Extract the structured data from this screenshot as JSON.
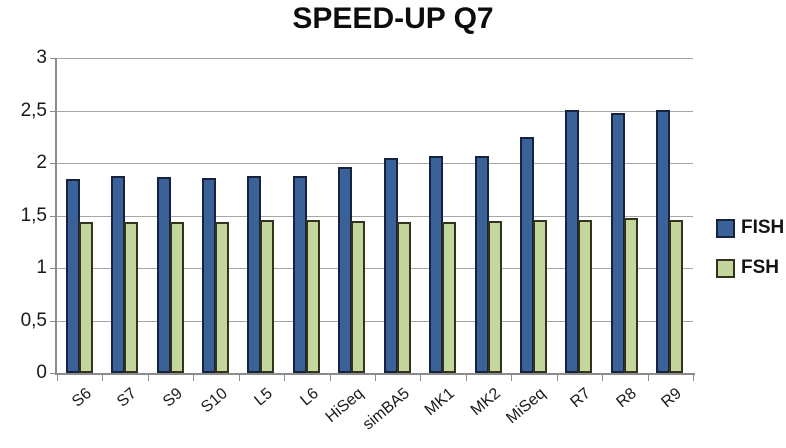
{
  "title": "SPEED-UP Q7",
  "chart_data": {
    "type": "bar",
    "title": "SPEED-UP Q7",
    "categories": [
      "S6",
      "S7",
      "S9",
      "S10",
      "L5",
      "L6",
      "HiSeq",
      "simBA5",
      "MK1",
      "MK2",
      "MiSeq",
      "R7",
      "R8",
      "R9"
    ],
    "series": [
      {
        "name": "FISH",
        "color": "#3a6298",
        "border_color": "#17233e",
        "values": [
          1.85,
          1.88,
          1.87,
          1.86,
          1.88,
          1.88,
          1.96,
          2.05,
          2.07,
          2.07,
          2.25,
          2.5,
          2.48,
          2.5
        ]
      },
      {
        "name": "FSH",
        "color": "#c3d69b",
        "border_color": "#32321e",
        "values": [
          1.44,
          1.44,
          1.44,
          1.44,
          1.46,
          1.46,
          1.45,
          1.44,
          1.44,
          1.45,
          1.46,
          1.46,
          1.48,
          1.46
        ]
      }
    ],
    "xlabel": "",
    "ylabel": "",
    "ylim": [
      0,
      3
    ],
    "yticks": [
      {
        "value": 0,
        "label": "0"
      },
      {
        "value": 0.5,
        "label": "0,5"
      },
      {
        "value": 1,
        "label": "1"
      },
      {
        "value": 1.5,
        "label": "1,5"
      },
      {
        "value": 2,
        "label": "2"
      },
      {
        "value": 2.5,
        "label": "2,5"
      },
      {
        "value": 3,
        "label": "3"
      }
    ],
    "grid": true,
    "legend_position": "right",
    "gridline_color": "#a6a6a6",
    "axis_color": "#8c8c8c",
    "text_color": "#1a1a1a"
  }
}
